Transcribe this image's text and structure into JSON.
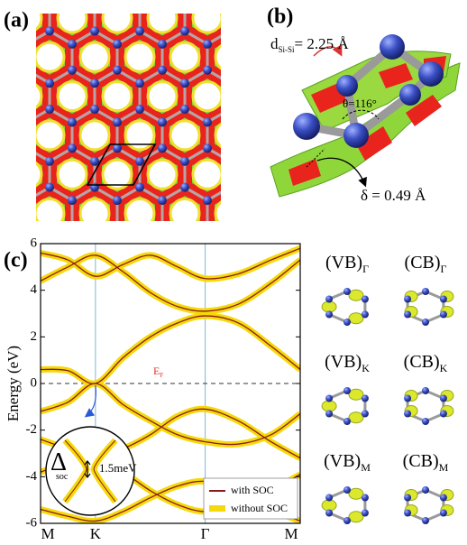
{
  "panel_labels": [
    "(a)",
    "(b)",
    "(c)"
  ],
  "structure": {
    "d_symbol": "d",
    "d_sub": "Si-Si",
    "d_value": "= 2.25 Å",
    "angle": "θ=116°",
    "buckling": "δ = 0.49 Å"
  },
  "orbitals": [
    {
      "state": "(VB)",
      "point": "Γ"
    },
    {
      "state": "(CB)",
      "point": "Γ"
    },
    {
      "state": "(VB)",
      "point": "K"
    },
    {
      "state": "(CB)",
      "point": "K"
    },
    {
      "state": "(VB)",
      "point": "M"
    },
    {
      "state": "(CB)",
      "point": "M"
    }
  ],
  "chart_data": {
    "type": "line",
    "y_label": "Energy (eV)",
    "x": [
      0,
      0.25,
      0.5,
      0.75,
      1.0,
      1.25,
      1.5,
      1.8,
      2.1,
      2.366
    ],
    "bands": [
      [
        0.6,
        0.55,
        0,
        1.1,
        2.0,
        2.6,
        2.9,
        2.6,
        1.6,
        0.6
      ],
      [
        -1.2,
        -0.8,
        0,
        -0.9,
        -1.6,
        -2.2,
        -2.5,
        -2.6,
        -2.2,
        -1.3
      ],
      [
        4.4,
        5.0,
        5.5,
        4.8,
        3.9,
        3.3,
        3.1,
        3.4,
        4.3,
        5.3
      ],
      [
        5.6,
        5.3,
        4.6,
        5.1,
        5.5,
        5.0,
        4.5,
        4.7,
        5.3,
        5.8
      ],
      [
        -2.4,
        -2.8,
        -3.1,
        -2.8,
        -2.2,
        -1.4,
        -1.1,
        -1.6,
        -2.5,
        -3.2
      ],
      [
        -3.8,
        -3.4,
        -3.3,
        -3.8,
        -4.6,
        -5.2,
        -5.5,
        -5.3,
        -4.6,
        -3.9
      ],
      [
        -5.4,
        -5.7,
        -5.9,
        -5.5,
        -4.9,
        -4.4,
        -4.2,
        -4.6,
        -5.4,
        -5.9
      ]
    ],
    "xlim": [
      0,
      2.366
    ],
    "xticks": [
      {
        "value": 0,
        "label": "M"
      },
      {
        "value": 0.5,
        "label": "K"
      },
      {
        "value": 1.5,
        "label": "Γ"
      },
      {
        "value": 2.366,
        "label": "M"
      }
    ],
    "ylim": [
      -6,
      6
    ],
    "yticks": [
      -6,
      -4,
      -2,
      0,
      2,
      4,
      6
    ],
    "fermi_level": 0,
    "fermi_label": "E",
    "fermi_sub": "F",
    "inset": {
      "symbol": "Δ",
      "sub": "soc",
      "gap": "1.5meV"
    },
    "legend": [
      {
        "name": "with SOC",
        "color": "#8b1a1a"
      },
      {
        "name": "without SOC",
        "color": "#f5d90a"
      }
    ]
  }
}
